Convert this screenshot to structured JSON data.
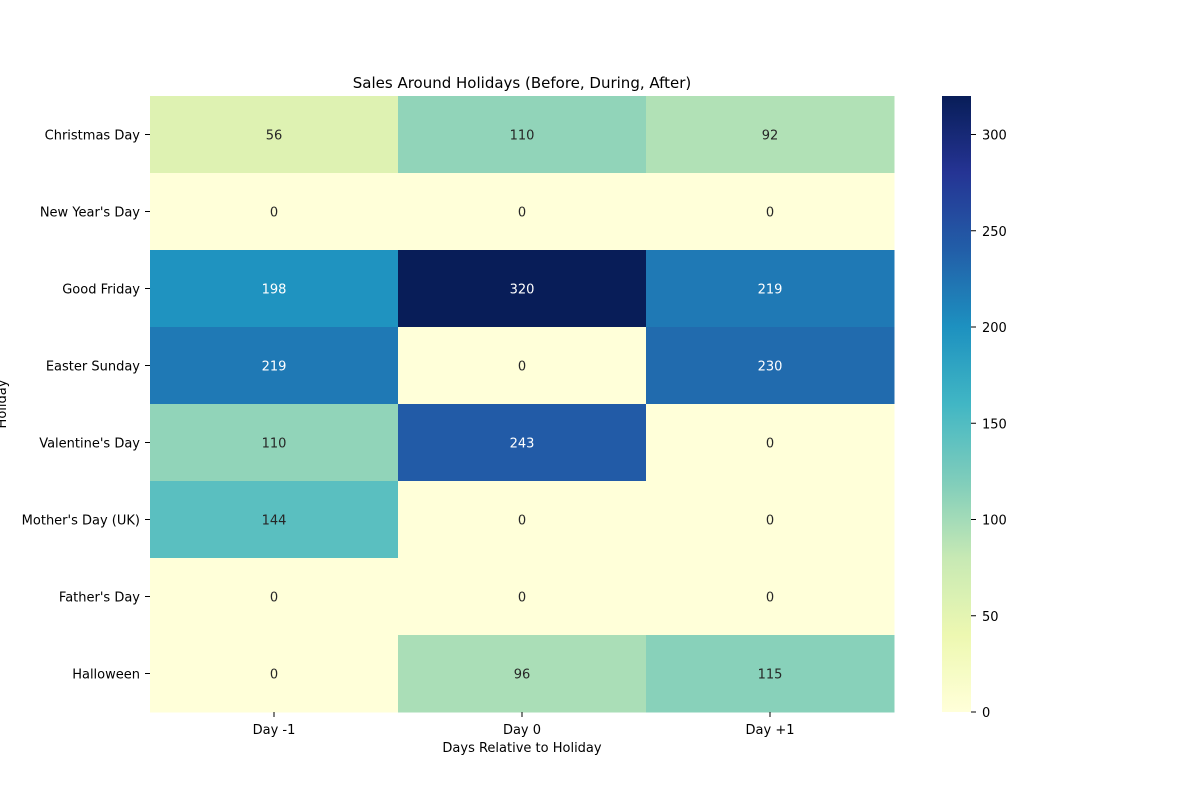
{
  "chart_data": {
    "type": "heatmap",
    "title": "Sales Around Holidays (Before, During, After)",
    "xlabel": "Days Relative to Holiday",
    "ylabel": "Holiday",
    "x_categories": [
      "Day -1",
      "Day 0",
      "Day +1"
    ],
    "y_categories": [
      "Christmas Day",
      "New Year's Day",
      "Good Friday",
      "Easter Sunday",
      "Valentine's Day",
      "Mother's Day (UK)",
      "Father's Day",
      "Halloween"
    ],
    "values": [
      [
        56,
        110,
        92
      ],
      [
        0,
        0,
        0
      ],
      [
        198,
        320,
        219
      ],
      [
        219,
        0,
        230
      ],
      [
        110,
        243,
        0
      ],
      [
        144,
        0,
        0
      ],
      [
        0,
        0,
        0
      ],
      [
        0,
        96,
        115
      ]
    ],
    "colormap": "YlGnBu",
    "vmin": 0,
    "vmax": 320,
    "colorbar_ticks": [
      0,
      50,
      100,
      150,
      200,
      250,
      300
    ],
    "annotate": true,
    "grid": false,
    "legend_placement": "right (colorbar)"
  }
}
